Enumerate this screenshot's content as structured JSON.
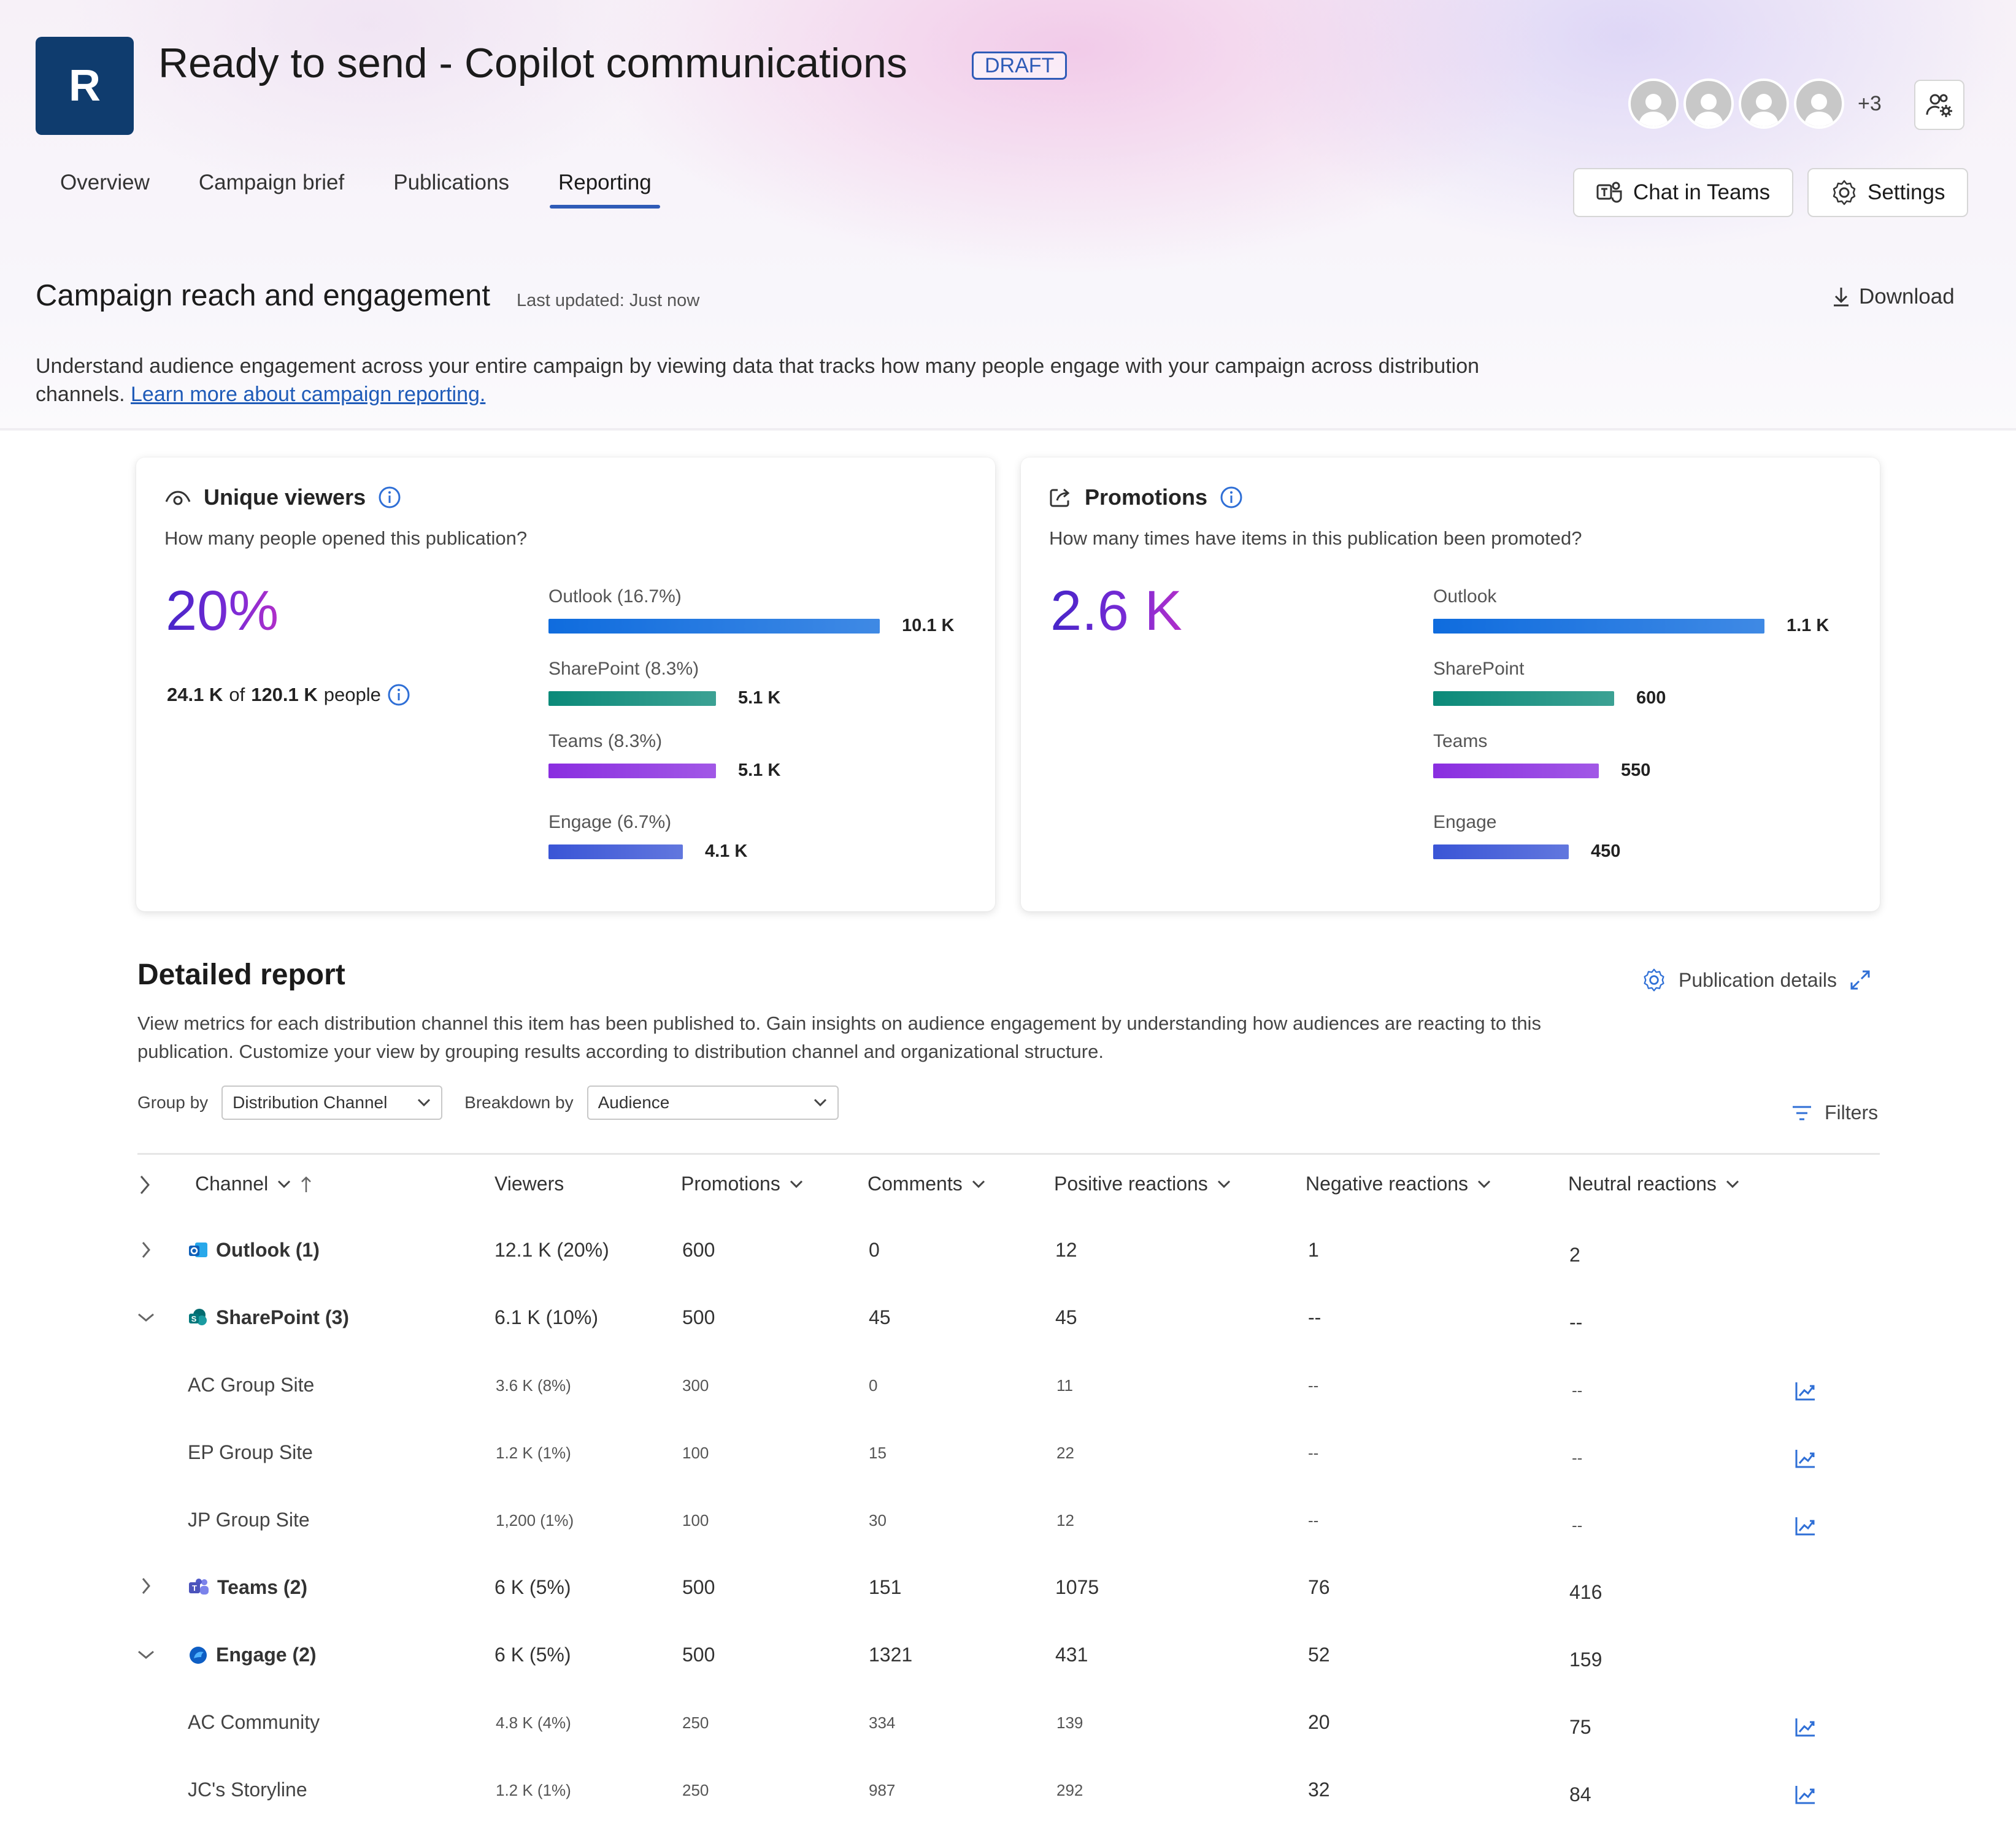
{
  "header": {
    "app_initial": "R",
    "title": "Ready to send - Copilot communications",
    "status_badge": "DRAFT",
    "more_members": "+3",
    "chat_label": "Chat in Teams",
    "settings_label": "Settings"
  },
  "tabs": [
    {
      "label": "Overview",
      "active": false
    },
    {
      "label": "Campaign brief",
      "active": false
    },
    {
      "label": "Publications",
      "active": false
    },
    {
      "label": "Reporting",
      "active": true
    }
  ],
  "reach": {
    "title": "Campaign reach and engagement",
    "last_updated": "Last updated: Just now",
    "download_label": "Download",
    "intro_text": "Understand audience engagement across your entire campaign by viewing data that tracks how many people engage with your campaign across distribution channels.",
    "learn_more": "Learn more about campaign reporting."
  },
  "viewers_card": {
    "title": "Unique viewers",
    "subtitle": "How many people opened this publication?",
    "big_value": "20%",
    "count": "24.1 K",
    "of_word": "of",
    "total": "120.1 K",
    "people_word": "people",
    "bars": [
      {
        "label": "Outlook  (16.7%)",
        "value": "10.1 K",
        "amount": 10.1,
        "color": "#0f6cde"
      },
      {
        "label": "SharePoint  (8.3%)",
        "value": "5.1 K",
        "amount": 5.1,
        "color": "#0b8a79"
      },
      {
        "label": "Teams (8.3%)",
        "value": "5.1 K",
        "amount": 5.1,
        "color": "#8a2ee0"
      },
      {
        "label": "Engage (6.7%)",
        "value": "4.1 K",
        "amount": 4.1,
        "color": "#3a55d6"
      }
    ]
  },
  "promotions_card": {
    "title": "Promotions",
    "subtitle": "How many times have items in this publication been promoted?",
    "big_value": "2.6 K",
    "bars": [
      {
        "label": "Outlook",
        "value": "1.1 K",
        "amount": 1100,
        "color": "#0f6cde"
      },
      {
        "label": "SharePoint",
        "value": "600",
        "amount": 600,
        "color": "#0b8a79"
      },
      {
        "label": "Teams",
        "value": "550",
        "amount": 550,
        "color": "#8a2ee0"
      },
      {
        "label": "Engage",
        "value": "450",
        "amount": 450,
        "color": "#3a55d6"
      }
    ]
  },
  "detail": {
    "title": "Detailed report",
    "description": "View metrics for each distribution channel this item has been published to. Gain insights on audience engagement by understanding how audiences are reacting to this publication. Customize your view by grouping results according to distribution channel and organizational structure.",
    "publication_details": "Publication details",
    "filters": "Filters",
    "group_by_label": "Group by",
    "group_by_value": "Distribution Channel",
    "breakdown_label": "Breakdown by",
    "breakdown_value": "Audience"
  },
  "table": {
    "columns": [
      "Channel",
      "Viewers",
      "Promotions",
      "Comments",
      "Positive reactions",
      "Negative reactions",
      "Neutral reactions"
    ],
    "rows": [
      {
        "name": "Outlook (1)",
        "level": 0,
        "icon": "outlook-icon",
        "expand": "collapsed",
        "cells": [
          "12.1 K (20%)",
          "600",
          "0",
          "12",
          "1",
          "2"
        ],
        "trend": false
      },
      {
        "name": "SharePoint (3)",
        "level": 0,
        "icon": "sharepoint-icon",
        "expand": "expanded",
        "cells": [
          "6.1 K (10%)",
          "500",
          "45",
          "45",
          "--",
          "--"
        ],
        "trend": false
      },
      {
        "name": "AC Group Site",
        "level": 1,
        "cells": [
          "3.6 K (8%)",
          "300",
          "0",
          "11",
          "--",
          "--"
        ],
        "trend": true
      },
      {
        "name": "EP Group Site",
        "level": 1,
        "cells": [
          "1.2 K (1%)",
          "100",
          "15",
          "22",
          "--",
          "--"
        ],
        "trend": true
      },
      {
        "name": "JP Group Site",
        "level": 1,
        "cells": [
          "1,200 (1%)",
          "100",
          "30",
          "12",
          "--",
          "--"
        ],
        "trend": true
      },
      {
        "name": "Teams (2)",
        "level": 0,
        "icon": "teams-icon",
        "expand": "collapsed",
        "cells": [
          "6 K (5%)",
          "500",
          "151",
          "1075",
          "76",
          "416"
        ],
        "trend": false
      },
      {
        "name": "Engage (2)",
        "level": 0,
        "icon": "engage-icon",
        "expand": "expanded",
        "cells": [
          "6 K (5%)",
          "500",
          "1321",
          "431",
          "52",
          "159"
        ],
        "trend": false
      },
      {
        "name": "AC Community",
        "level": 1,
        "cells": [
          "4.8 K (4%)",
          "250",
          "334",
          "139",
          "20",
          "75"
        ],
        "trend": true
      },
      {
        "name": "JC's Storyline",
        "level": 1,
        "cells": [
          "1.2 K (1%)",
          "250",
          "987",
          "292",
          "32",
          "84"
        ],
        "trend": true
      }
    ]
  },
  "colors": {
    "accent": "#2f5bb7",
    "app_icon_bg": "#0f3c6e",
    "link": "#1f5bb8",
    "trend_icon": "#2f6fd6"
  }
}
